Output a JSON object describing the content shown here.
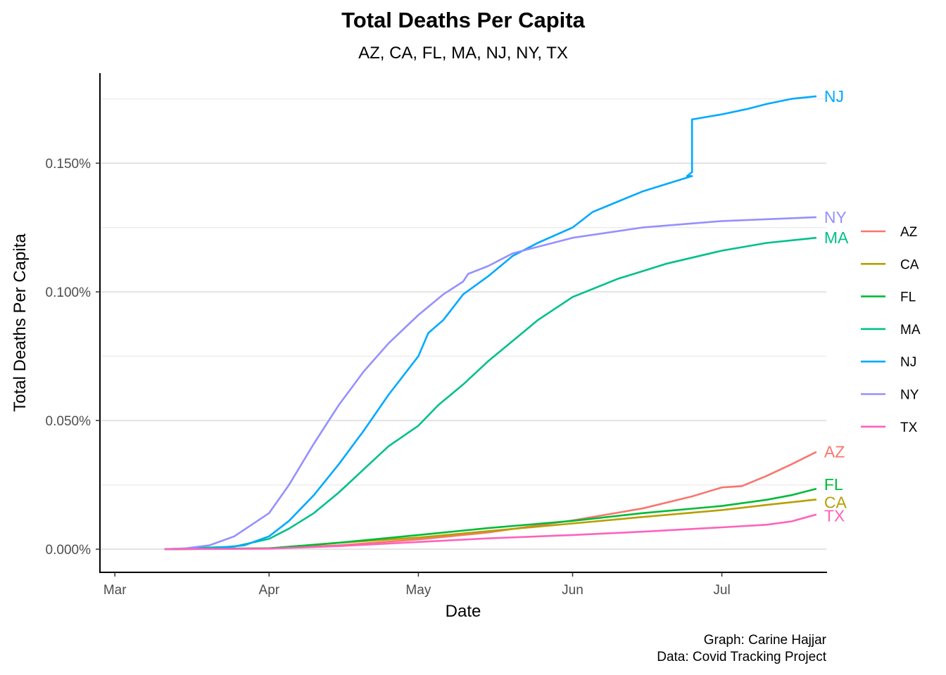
{
  "chart_data": {
    "type": "line",
    "title": "Total Deaths Per Capita",
    "subtitle": "AZ, CA, FL, MA, NJ, NY, TX",
    "xlabel": "Date",
    "ylabel": "Total Deaths Per Capita",
    "caption_lines": [
      "Graph: Carine Hajjar",
      "Data: Covid Tracking Project"
    ],
    "x_ticks": [
      {
        "label": "Mar",
        "date": "2020-03-01"
      },
      {
        "label": "Apr",
        "date": "2020-04-01"
      },
      {
        "label": "May",
        "date": "2020-05-01"
      },
      {
        "label": "Jun",
        "date": "2020-06-01"
      },
      {
        "label": "Jul",
        "date": "2020-07-01"
      }
    ],
    "xlim": [
      "2020-02-27",
      "2020-07-22"
    ],
    "y_ticks": [
      0,
      0.0005,
      0.001,
      0.0015
    ],
    "y_tick_labels": [
      "0.000%",
      "0.050%",
      "0.100%",
      "0.150%"
    ],
    "ylim": [
      -9e-05,
      0.00185
    ],
    "grid": "horizontal major and minor",
    "legend_position": "right",
    "end_labels": true,
    "series": [
      {
        "name": "AZ",
        "color": "#F8766D",
        "points": [
          [
            "2020-03-11",
            0
          ],
          [
            "2020-04-01",
            3.5e-06
          ],
          [
            "2020-04-15",
            1.5e-05
          ],
          [
            "2020-05-01",
            3.8e-05
          ],
          [
            "2020-05-15",
            6.5e-05
          ],
          [
            "2020-06-01",
            0.000112
          ],
          [
            "2020-06-15",
            0.000158
          ],
          [
            "2020-06-25",
            0.000205
          ],
          [
            "2020-07-01",
            0.00024
          ],
          [
            "2020-07-05",
            0.000245
          ],
          [
            "2020-07-10",
            0.000285
          ],
          [
            "2020-07-15",
            0.00033
          ],
          [
            "2020-07-20",
            0.000378
          ]
        ]
      },
      {
        "name": "CA",
        "color": "#B79F00",
        "points": [
          [
            "2020-03-11",
            0
          ],
          [
            "2020-04-01",
            2.5e-06
          ],
          [
            "2020-04-15",
            2.5e-05
          ],
          [
            "2020-05-01",
            4.5e-05
          ],
          [
            "2020-05-15",
            7e-05
          ],
          [
            "2020-06-01",
            0.0001
          ],
          [
            "2020-06-15",
            0.000125
          ],
          [
            "2020-07-01",
            0.000152
          ],
          [
            "2020-07-10",
            0.000172
          ],
          [
            "2020-07-20",
            0.000193
          ]
        ]
      },
      {
        "name": "FL",
        "color": "#00BA38",
        "points": [
          [
            "2020-03-11",
            0
          ],
          [
            "2020-04-01",
            3.5e-06
          ],
          [
            "2020-04-15",
            2.5e-05
          ],
          [
            "2020-05-01",
            5.5e-05
          ],
          [
            "2020-05-15",
            8.2e-05
          ],
          [
            "2020-06-01",
            0.00011
          ],
          [
            "2020-06-15",
            0.00014
          ],
          [
            "2020-07-01",
            0.000168
          ],
          [
            "2020-07-10",
            0.000192
          ],
          [
            "2020-07-15",
            0.00021
          ],
          [
            "2020-07-20",
            0.000235
          ]
        ]
      },
      {
        "name": "MA",
        "color": "#00C08B",
        "points": [
          [
            "2020-03-11",
            0
          ],
          [
            "2020-03-25",
            1e-05
          ],
          [
            "2020-04-01",
            4e-05
          ],
          [
            "2020-04-05",
            8e-05
          ],
          [
            "2020-04-10",
            0.00014
          ],
          [
            "2020-04-15",
            0.00022
          ],
          [
            "2020-04-20",
            0.00031
          ],
          [
            "2020-04-25",
            0.0004
          ],
          [
            "2020-05-01",
            0.00048
          ],
          [
            "2020-05-05",
            0.00056
          ],
          [
            "2020-05-10",
            0.00064
          ],
          [
            "2020-05-15",
            0.00073
          ],
          [
            "2020-05-20",
            0.00081
          ],
          [
            "2020-05-25",
            0.00089
          ],
          [
            "2020-06-01",
            0.00098
          ],
          [
            "2020-06-10",
            0.00105
          ],
          [
            "2020-06-20",
            0.00111
          ],
          [
            "2020-07-01",
            0.00116
          ],
          [
            "2020-07-10",
            0.00119
          ],
          [
            "2020-07-20",
            0.00121
          ]
        ]
      },
      {
        "name": "NJ",
        "color": "#00A9FF",
        "points": [
          [
            "2020-03-11",
            0
          ],
          [
            "2020-03-20",
            2e-06
          ],
          [
            "2020-03-27",
            1.5e-05
          ],
          [
            "2020-04-01",
            5e-05
          ],
          [
            "2020-04-05",
            0.00011
          ],
          [
            "2020-04-10",
            0.00021
          ],
          [
            "2020-04-15",
            0.00033
          ],
          [
            "2020-04-20",
            0.00046
          ],
          [
            "2020-04-25",
            0.0006
          ],
          [
            "2020-05-01",
            0.00075
          ],
          [
            "2020-05-03",
            0.00084
          ],
          [
            "2020-05-06",
            0.00089
          ],
          [
            "2020-05-10",
            0.00099
          ],
          [
            "2020-05-15",
            0.00106
          ],
          [
            "2020-05-20",
            0.00114
          ],
          [
            "2020-05-25",
            0.00119
          ],
          [
            "2020-06-01",
            0.00125
          ],
          [
            "2020-06-05",
            0.00131
          ],
          [
            "2020-06-10",
            0.00135
          ],
          [
            "2020-06-15",
            0.00139
          ],
          [
            "2020-06-20",
            0.00142
          ],
          [
            "2020-06-25",
            0.00145
          ],
          [
            "2020-06-24",
            0.00145
          ],
          [
            "2020-06-25",
            0.001465
          ],
          [
            "2020-06-25",
            0.00167
          ],
          [
            "2020-07-01",
            0.00169
          ],
          [
            "2020-07-06",
            0.00171
          ],
          [
            "2020-07-10",
            0.00173
          ],
          [
            "2020-07-15",
            0.00175
          ],
          [
            "2020-07-20",
            0.00176
          ]
        ]
      },
      {
        "name": "NY",
        "color": "#9590FF",
        "points": [
          [
            "2020-03-11",
            0
          ],
          [
            "2020-03-15",
            3e-06
          ],
          [
            "2020-03-20",
            1.5e-05
          ],
          [
            "2020-03-25",
            5e-05
          ],
          [
            "2020-04-01",
            0.00014
          ],
          [
            "2020-04-05",
            0.00025
          ],
          [
            "2020-04-10",
            0.00041
          ],
          [
            "2020-04-15",
            0.00056
          ],
          [
            "2020-04-20",
            0.00069
          ],
          [
            "2020-04-25",
            0.0008
          ],
          [
            "2020-05-01",
            0.00091
          ],
          [
            "2020-05-06",
            0.00099
          ],
          [
            "2020-05-10",
            0.00104
          ],
          [
            "2020-05-11",
            0.00107
          ],
          [
            "2020-05-15",
            0.0011
          ],
          [
            "2020-05-20",
            0.00115
          ],
          [
            "2020-06-01",
            0.00121
          ],
          [
            "2020-06-15",
            0.00125
          ],
          [
            "2020-07-01",
            0.001275
          ],
          [
            "2020-07-20",
            0.00129
          ]
        ]
      },
      {
        "name": "TX",
        "color": "#FF62BC",
        "points": [
          [
            "2020-03-11",
            0
          ],
          [
            "2020-04-01",
            2e-06
          ],
          [
            "2020-04-15",
            1.2e-05
          ],
          [
            "2020-05-01",
            2.8e-05
          ],
          [
            "2020-05-15",
            4.2e-05
          ],
          [
            "2020-06-01",
            5.5e-05
          ],
          [
            "2020-06-15",
            6.8e-05
          ],
          [
            "2020-07-01",
            8.5e-05
          ],
          [
            "2020-07-10",
            9.5e-05
          ],
          [
            "2020-07-15",
            0.000108
          ],
          [
            "2020-07-20",
            0.000135
          ]
        ]
      }
    ]
  }
}
